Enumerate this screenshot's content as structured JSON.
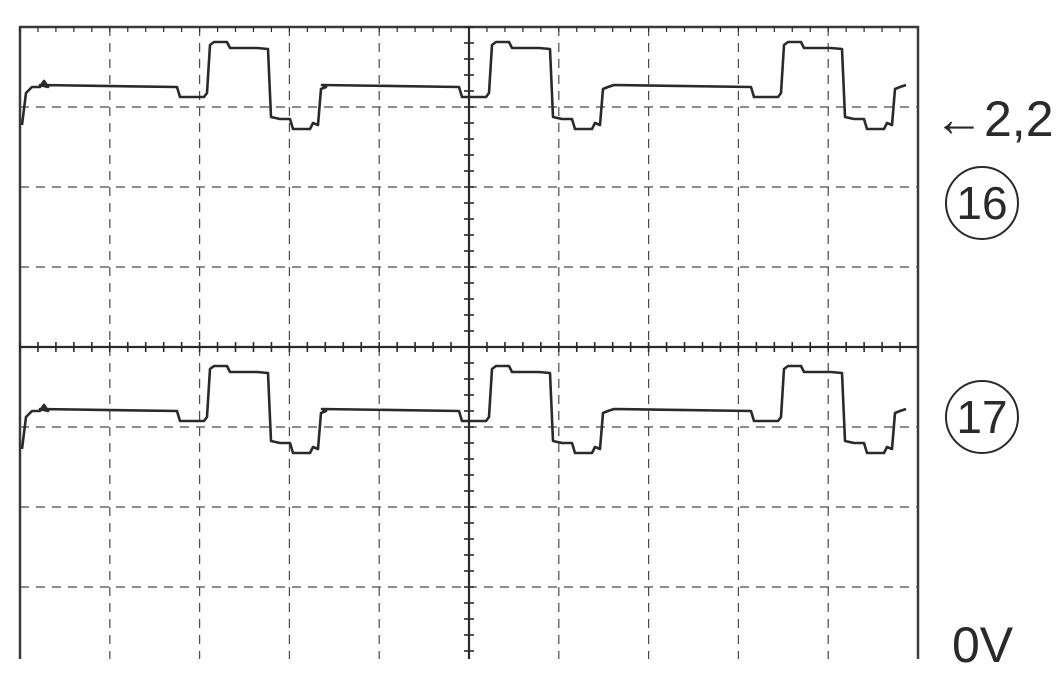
{
  "labels": {
    "level_marker": "←2,2",
    "zero_marker": "0V",
    "channel_top": "16",
    "channel_bottom": "17"
  },
  "colors": {
    "trace": "#2a2a2a",
    "grid": "#3a3a3a",
    "background": "#ffffff"
  },
  "grid": {
    "divisions_x": 10,
    "divisions_y": 8
  }
}
